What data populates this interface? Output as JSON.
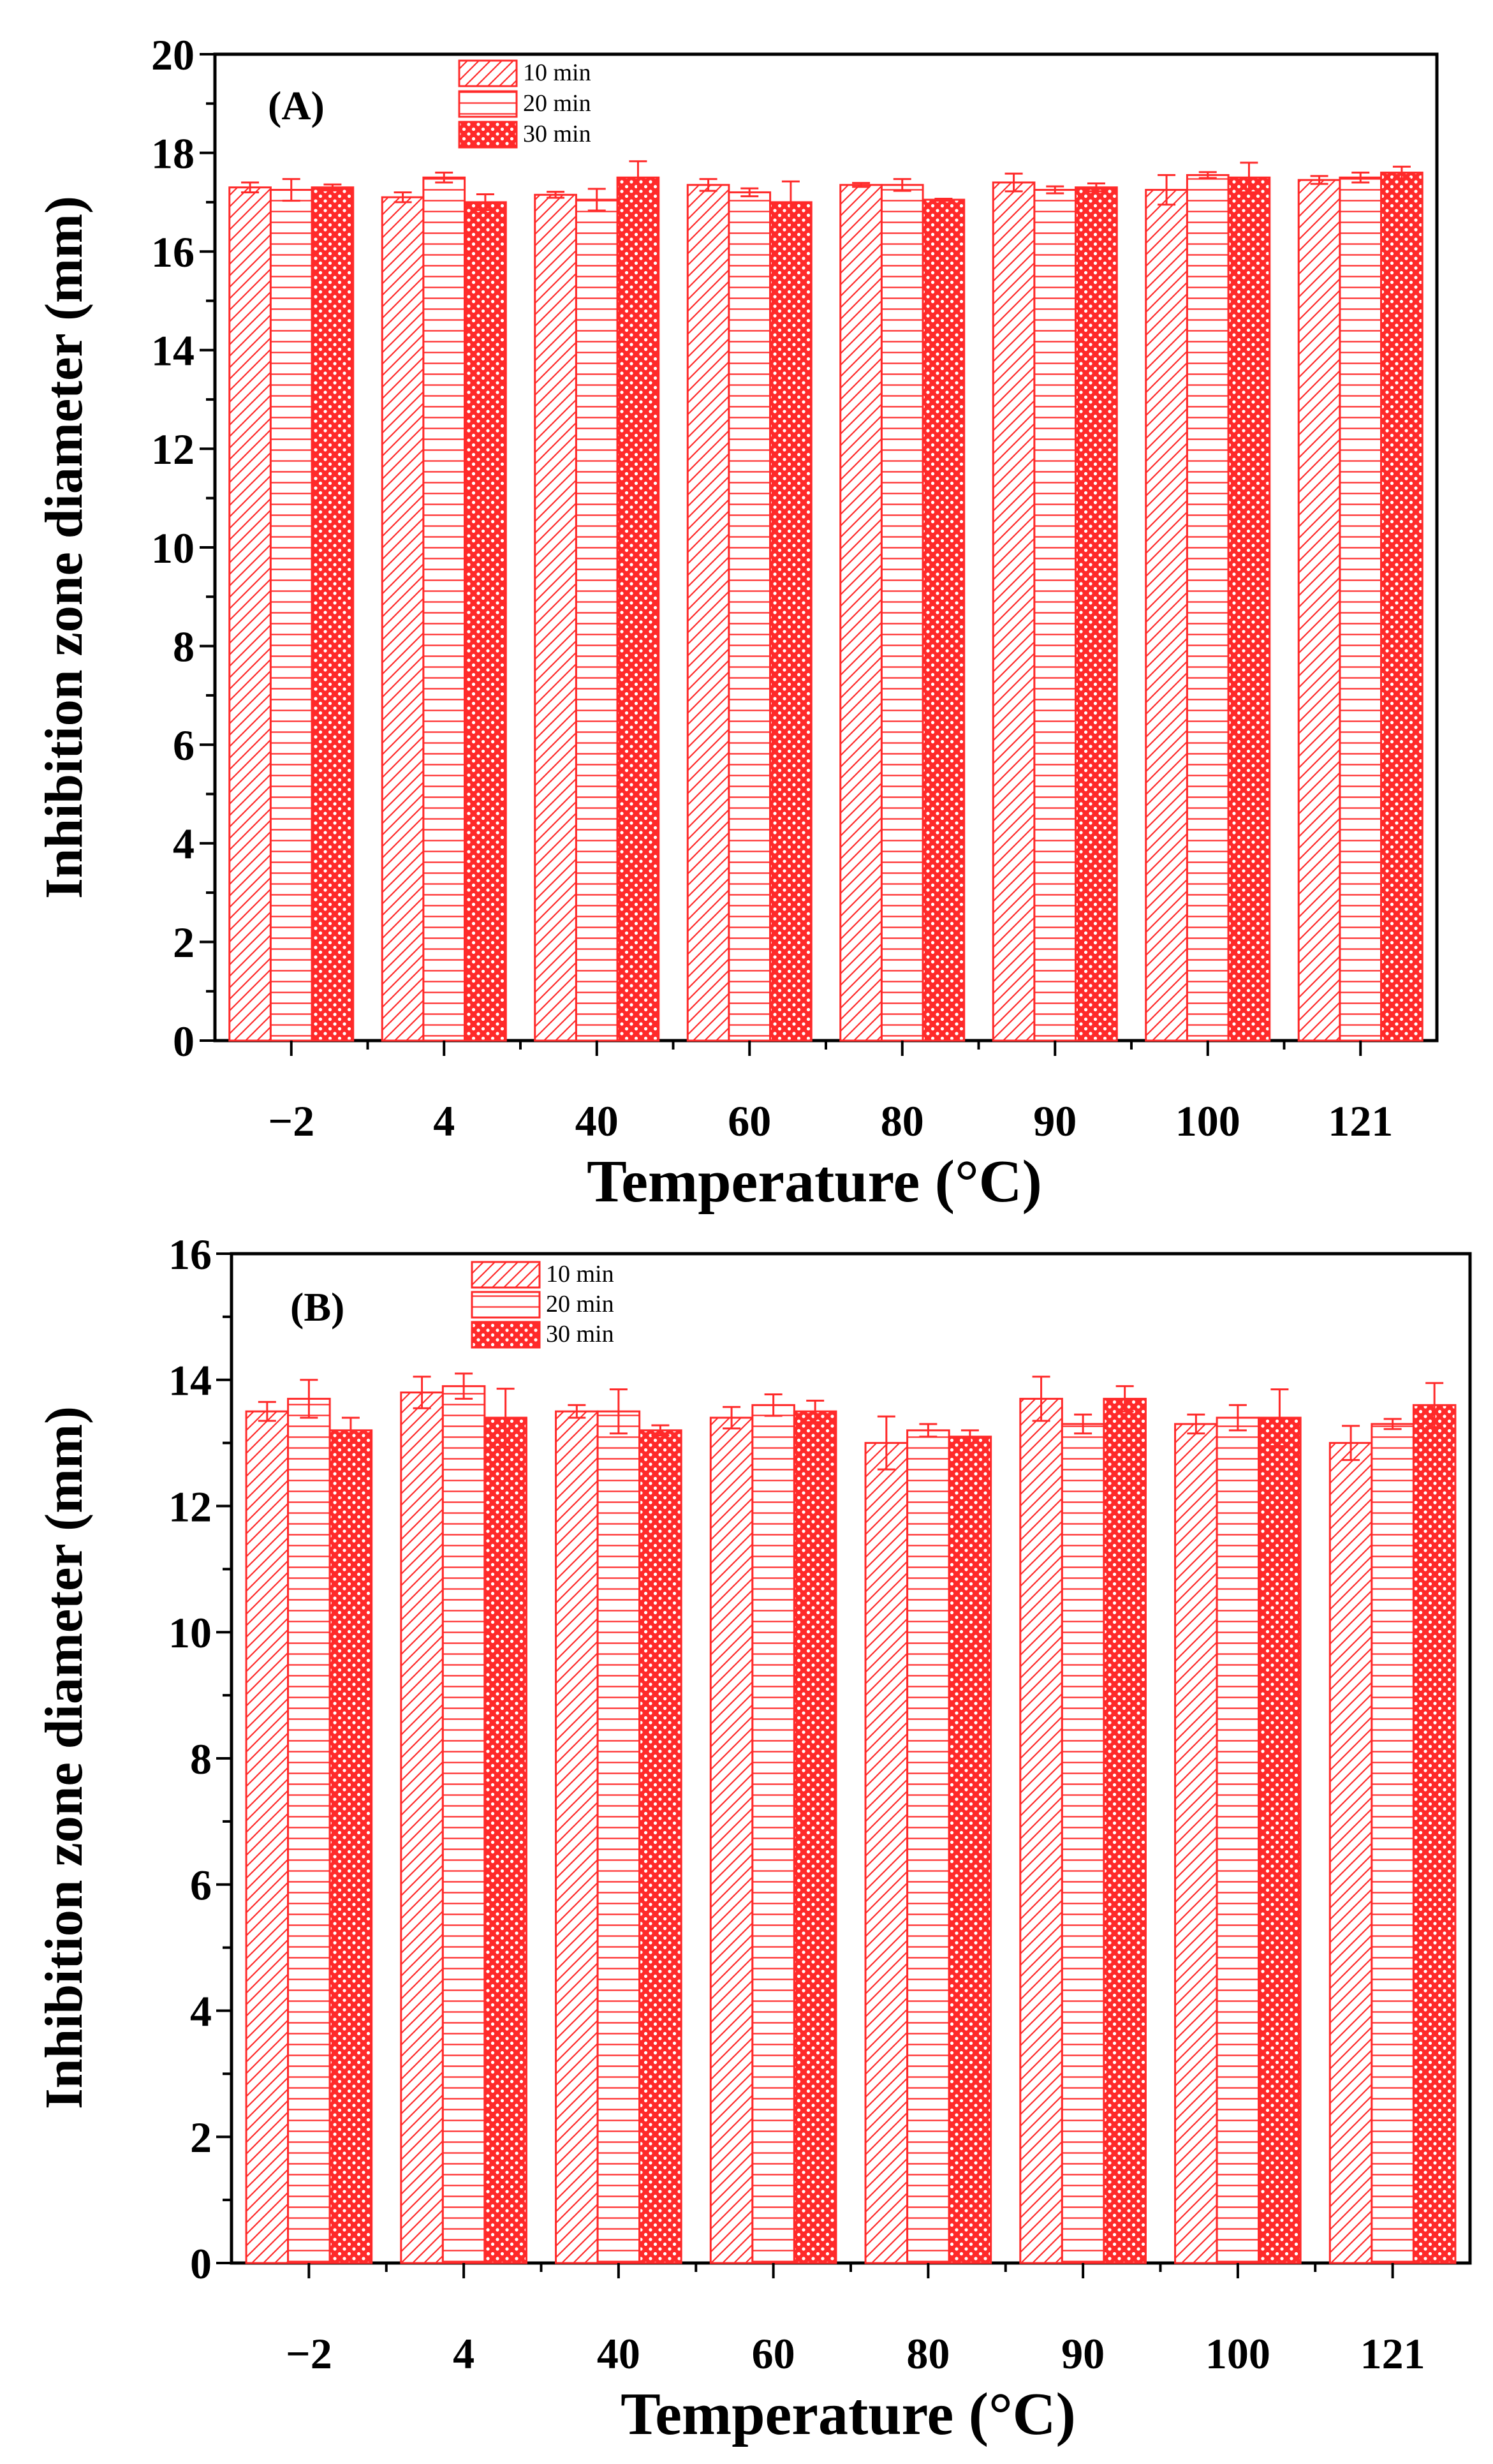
{
  "figure": {
    "accent_color": "#ff2a2a"
  },
  "chart_data": [
    {
      "type": "bar",
      "panel_label": "(A)",
      "title": "",
      "xlabel": "Temperature (°C)",
      "ylabel": "Inhibition zone diameter (mm)",
      "categories": [
        "−2",
        "4",
        "40",
        "60",
        "80",
        "90",
        "100",
        "121"
      ],
      "ylim": [
        0,
        20
      ],
      "yticks": [
        "0",
        "2",
        "4",
        "6",
        "8",
        "10",
        "12",
        "14",
        "16",
        "18",
        "20"
      ],
      "legend_position": "top-left",
      "series": [
        {
          "name": "10 min",
          "pattern": "diagonal",
          "values": [
            17.3,
            17.1,
            17.15,
            17.35,
            17.35,
            17.4,
            17.25,
            17.45
          ],
          "errors": [
            0.1,
            0.1,
            0.06,
            0.12,
            0.04,
            0.18,
            0.3,
            0.08
          ]
        },
        {
          "name": "20 min",
          "pattern": "horizontal",
          "values": [
            17.25,
            17.5,
            17.05,
            17.2,
            17.35,
            17.25,
            17.55,
            17.5
          ],
          "errors": [
            0.22,
            0.1,
            0.22,
            0.08,
            0.12,
            0.07,
            0.06,
            0.1
          ]
        },
        {
          "name": "30 min",
          "pattern": "dots",
          "values": [
            17.3,
            17.0,
            17.5,
            17.0,
            17.05,
            17.3,
            17.5,
            17.6
          ],
          "errors": [
            0.06,
            0.16,
            0.33,
            0.42,
            0.02,
            0.08,
            0.3,
            0.12
          ]
        }
      ]
    },
    {
      "type": "bar",
      "panel_label": "(B)",
      "title": "",
      "xlabel": "Temperature (°C)",
      "ylabel": "Inhibition zone diameter (mm)",
      "categories": [
        "−2",
        "4",
        "40",
        "60",
        "80",
        "90",
        "100",
        "121"
      ],
      "ylim": [
        0,
        16
      ],
      "yticks": [
        "0",
        "2",
        "4",
        "6",
        "8",
        "10",
        "12",
        "14",
        "16"
      ],
      "legend_position": "top-left",
      "series": [
        {
          "name": "10 min",
          "pattern": "diagonal",
          "values": [
            13.5,
            13.8,
            13.5,
            13.4,
            13.0,
            13.7,
            13.3,
            13.0
          ],
          "errors": [
            0.15,
            0.25,
            0.1,
            0.17,
            0.42,
            0.35,
            0.15,
            0.27
          ]
        },
        {
          "name": "20 min",
          "pattern": "horizontal",
          "values": [
            13.7,
            13.9,
            13.5,
            13.6,
            13.2,
            13.3,
            13.4,
            13.3
          ],
          "errors": [
            0.3,
            0.2,
            0.35,
            0.17,
            0.1,
            0.15,
            0.2,
            0.08
          ]
        },
        {
          "name": "30 min",
          "pattern": "dots",
          "values": [
            13.2,
            13.4,
            13.2,
            13.5,
            13.1,
            13.7,
            13.4,
            13.6
          ],
          "errors": [
            0.2,
            0.46,
            0.08,
            0.17,
            0.1,
            0.2,
            0.45,
            0.35
          ]
        }
      ]
    }
  ]
}
